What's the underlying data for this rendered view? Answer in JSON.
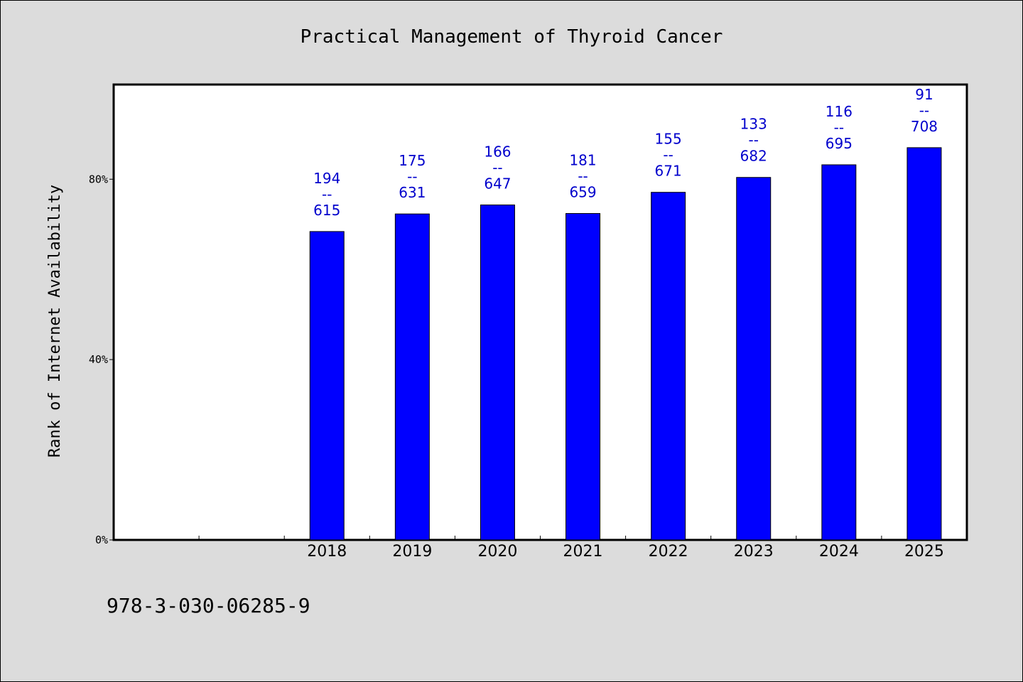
{
  "chart_data": {
    "type": "bar",
    "title": "Practical Management of Thyroid Cancer",
    "xlabel": "",
    "ylabel": "Rank of Internet Availability",
    "categories": [
      "",
      "",
      "2018",
      "2019",
      "2020",
      "2021",
      "2022",
      "2023",
      "2024",
      "2025"
    ],
    "values": [
      null,
      null,
      68.4,
      72.3,
      74.3,
      72.4,
      77.1,
      80.4,
      83.2,
      87.0
    ],
    "data_labels": [
      "",
      "",
      "194\n--\n615",
      "175\n--\n631",
      "166\n--\n647",
      "181\n--\n659",
      "155\n--\n671",
      "133\n--\n682",
      "116\n--\n695",
      "91\n--\n708"
    ],
    "ylim": [
      0,
      101
    ],
    "yticks": [
      0,
      40,
      80
    ],
    "ytick_labels": [
      "0%",
      "40%",
      "80%"
    ],
    "grid": false,
    "bar_color": "#0000ff",
    "label_color": "#0000cc"
  },
  "footer": {
    "isbn": "978-3-030-06285-9"
  }
}
